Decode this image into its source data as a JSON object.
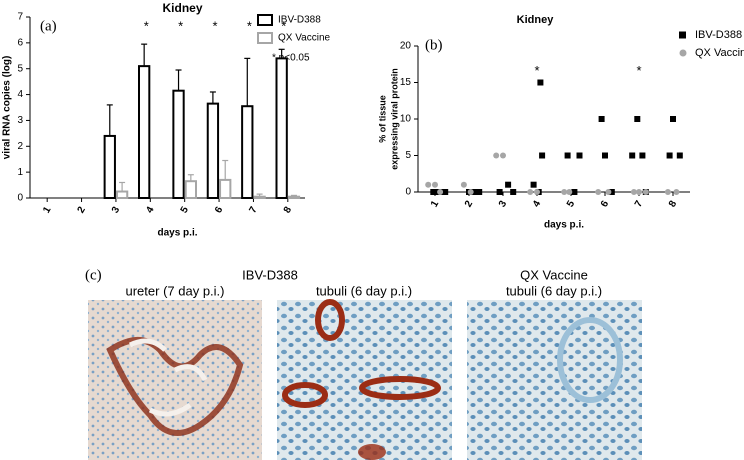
{
  "chart_data": [
    {
      "type": "bar",
      "panel": "(a)",
      "title": "Kidney",
      "x_label": "days p.i.",
      "y_label": "viral RNA copies (log)",
      "categories": [
        "1",
        "2",
        "3",
        "4",
        "5",
        "6",
        "7",
        "8"
      ],
      "series": [
        {
          "name": "IBV-D388",
          "color": "#000000",
          "values": [
            0,
            0,
            2.4,
            5.1,
            4.15,
            3.65,
            3.55,
            5.4
          ],
          "errors": [
            0,
            0,
            1.2,
            0.85,
            0.8,
            0.45,
            1.85,
            0.35
          ]
        },
        {
          "name": "QX Vaccine",
          "color": "#a6a6a6",
          "values": [
            0,
            0,
            0.25,
            0,
            0.65,
            0.7,
            0.05,
            0.05
          ],
          "errors": [
            0,
            0,
            0.35,
            0,
            0.25,
            0.75,
            0.1,
            0.05
          ]
        }
      ],
      "annotations": [
        {
          "x": "4",
          "text": "*"
        },
        {
          "x": "5",
          "text": "*"
        },
        {
          "x": "6",
          "text": "*"
        },
        {
          "x": "7",
          "text": "*"
        },
        {
          "x": "8",
          "text": "*"
        }
      ],
      "note": "* p<0.05",
      "ylim": [
        0,
        7
      ],
      "yticks": [
        0,
        1,
        2,
        3,
        4,
        5,
        6,
        7
      ],
      "legend": "top-right"
    },
    {
      "type": "scatter",
      "panel": "(b)",
      "title": "Kidney",
      "x_label": "days p.i.",
      "y_label": [
        "% of tissue",
        "expressing viral protein"
      ],
      "series": [
        {
          "name": "IBV-D388",
          "color": "#000000",
          "marker": "square",
          "x": [
            0.95,
            1.1,
            1.2,
            1.3,
            2.0,
            2.15,
            2.3,
            2.9,
            3.15,
            3.3,
            3.9,
            4.05,
            4.1,
            4.15,
            4.9,
            5.1,
            5.25,
            5.9,
            6.0,
            6.2,
            6.8,
            6.95,
            7.1,
            7.2,
            7.9,
            8.0,
            8.2
          ],
          "values": [
            0,
            0,
            0,
            0,
            0,
            0,
            0,
            0,
            1,
            0,
            1,
            0,
            15,
            5,
            5,
            0,
            5,
            10,
            5,
            0,
            5,
            10,
            5,
            0,
            5,
            10,
            5
          ]
        },
        {
          "name": "QX Vaccine",
          "color": "#a6a6a6",
          "marker": "circle",
          "x": [
            0.8,
            1.0,
            1.15,
            1.85,
            2.05,
            2.8,
            3.0,
            3.8,
            4.0,
            4.8,
            4.95,
            5.8,
            6.1,
            6.85,
            7.0,
            7.2,
            7.85,
            8.1
          ],
          "values": [
            1,
            1,
            0,
            1,
            0,
            5,
            5,
            0,
            0,
            0,
            0,
            0,
            0,
            0,
            0,
            0,
            0,
            0
          ]
        }
      ],
      "annotations": [
        {
          "x": 4,
          "y": 16.5,
          "text": "*"
        },
        {
          "x": 7,
          "y": 16.5,
          "text": "*"
        }
      ],
      "xlim": [
        0.5,
        8.5
      ],
      "xticks": [
        1,
        2,
        3,
        4,
        5,
        6,
        7,
        8
      ],
      "ylim": [
        0,
        20
      ],
      "yticks": [
        0,
        5,
        10,
        15,
        20
      ],
      "legend": "top-right"
    }
  ],
  "panel_c": {
    "label": "(c)",
    "group1": "IBV-D388",
    "images": [
      {
        "caption": "ureter (7 day p.i.)"
      },
      {
        "caption": "tubuli (6 day p.i.)"
      },
      {
        "group": "QX Vaccine",
        "caption": "tubuli (6 day p.i.)"
      }
    ]
  }
}
